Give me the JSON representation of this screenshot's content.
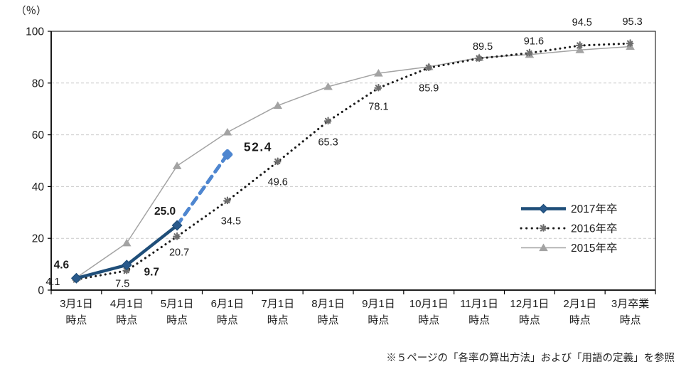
{
  "chart": {
    "unit_label": "（％）",
    "footnote": "※５ページの「各率の算出方法」および「用語の定義」を参照"
  },
  "chart_data": {
    "type": "line",
    "title": "",
    "ylabel": "（％）",
    "ylim": [
      0,
      100
    ],
    "y_ticks": [
      0,
      20,
      40,
      60,
      80,
      100
    ],
    "grid": "horizontal-dashed",
    "legend_position": "middle-right",
    "categories": [
      [
        "3月1日",
        "時点"
      ],
      [
        "4月1日",
        "時点"
      ],
      [
        "5月1日",
        "時点"
      ],
      [
        "6月1日",
        "時点"
      ],
      [
        "7月1日",
        "時点"
      ],
      [
        "8月1日",
        "時点"
      ],
      [
        "9月1日",
        "時点"
      ],
      [
        "10月1日",
        "時点"
      ],
      [
        "11月1日",
        "時点"
      ],
      [
        "12月1日",
        "時点"
      ],
      [
        "2月1日",
        "時点"
      ],
      [
        "3月卒業",
        "時点"
      ]
    ],
    "series": [
      {
        "name": "2017年卒",
        "marker": "diamond",
        "line": "solid-then-dashed",
        "dashed_from_index": 2,
        "color": "#1f4e79",
        "dashed_color": "#4e86d0",
        "values": [
          4.6,
          9.7,
          25.0,
          52.4
        ],
        "value_labels": [
          "4.6",
          "9.7",
          "25.0",
          "52.4"
        ]
      },
      {
        "name": "2016年卒",
        "marker": "asterisk",
        "line": "dotted",
        "color": "#1a1a1a",
        "marker_color": "#6e6e6e",
        "values": [
          4.1,
          7.5,
          20.7,
          34.5,
          49.6,
          65.3,
          78.1,
          85.9,
          89.5,
          91.6,
          94.5,
          95.3
        ],
        "value_labels": [
          "4.1",
          "7.5",
          "20.7",
          "34.5",
          "49.6",
          "65.3",
          "78.1",
          "85.9",
          "89.5",
          "91.6",
          "94.5",
          "95.3"
        ]
      },
      {
        "name": "2015年卒",
        "marker": "triangle",
        "line": "solid",
        "color": "#a3a3a3",
        "values_estimated": true,
        "values": [
          4.8,
          18.2,
          48.0,
          61.0,
          71.3,
          78.6,
          83.8,
          86.3,
          89.8,
          91.0,
          92.8,
          94.1
        ]
      }
    ]
  }
}
